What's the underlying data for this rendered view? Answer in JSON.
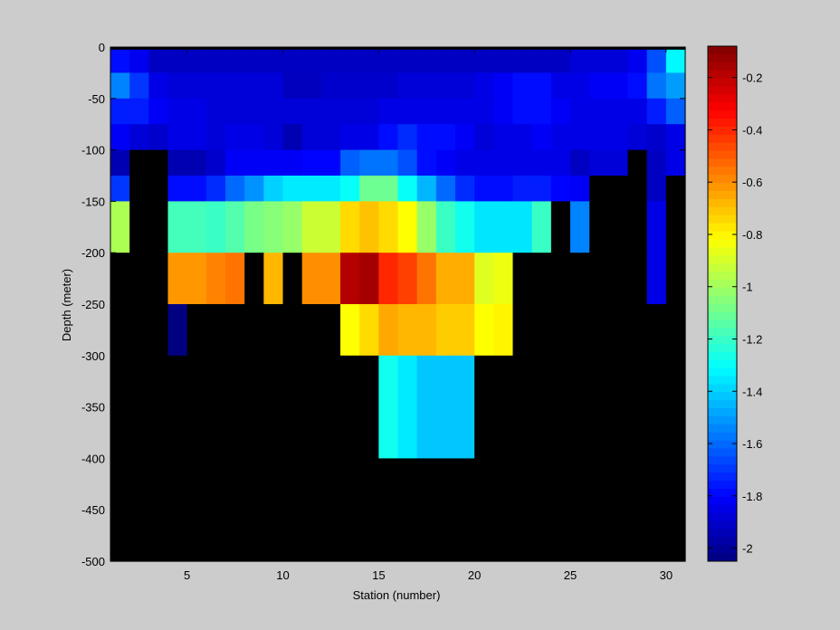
{
  "chart_data": {
    "type": "heatmap",
    "title": "",
    "xlabel": "Station (number)",
    "ylabel": "Depth (meter)",
    "xlim": [
      1,
      31
    ],
    "ylim": [
      -500,
      0
    ],
    "xticks": [
      5,
      10,
      15,
      20,
      25,
      30
    ],
    "xtick_labels": [
      "5",
      "10",
      "15",
      "20",
      "25",
      "30"
    ],
    "yticks": [
      0,
      -50,
      -100,
      -150,
      -200,
      -250,
      -300,
      -350,
      -400,
      -450,
      -500
    ],
    "ytick_labels": [
      "0",
      "-50",
      "-100",
      "-150",
      "-200",
      "-250",
      "-300",
      "-350",
      "-400",
      "-450",
      "-500"
    ],
    "no_data_color": "#000000",
    "background": "#cccccc",
    "stations_x": [
      1,
      31
    ],
    "depth_rows": [
      {
        "top": 0,
        "bottom": -2.5
      },
      {
        "top": -2.5,
        "bottom": -25
      },
      {
        "top": -25,
        "bottom": -50
      },
      {
        "top": -50,
        "bottom": -75
      },
      {
        "top": -75,
        "bottom": -100
      },
      {
        "top": -100,
        "bottom": -125
      },
      {
        "top": -125,
        "bottom": -150
      },
      {
        "top": -150,
        "bottom": -200
      },
      {
        "top": -200,
        "bottom": -250
      },
      {
        "top": -250,
        "bottom": -300
      },
      {
        "top": -300,
        "bottom": -400
      },
      {
        "top": -400,
        "bottom": -500
      }
    ],
    "values": [
      [
        null,
        null,
        null,
        null,
        null,
        null,
        null,
        null,
        null,
        null,
        null,
        null,
        null,
        null,
        null,
        null,
        null,
        null,
        null,
        null,
        null,
        null,
        null,
        null,
        null,
        null,
        null,
        null,
        null,
        null
      ],
      [
        -1.78,
        -1.83,
        -1.92,
        -1.92,
        -1.92,
        -1.92,
        -1.92,
        -1.92,
        -1.92,
        -1.92,
        -1.92,
        -1.92,
        -1.92,
        -1.92,
        -1.92,
        -1.92,
        -1.92,
        -1.92,
        -1.92,
        -1.92,
        -1.92,
        -1.92,
        -1.92,
        -1.92,
        -1.88,
        -1.88,
        -1.88,
        -1.83,
        -1.65,
        -1.32
      ],
      [
        -1.55,
        -1.7,
        -1.85,
        -1.88,
        -1.88,
        -1.88,
        -1.88,
        -1.88,
        -1.88,
        -1.93,
        -1.93,
        -1.9,
        -1.9,
        -1.9,
        -1.9,
        -1.88,
        -1.88,
        -1.88,
        -1.88,
        -1.85,
        -1.82,
        -1.78,
        -1.78,
        -1.85,
        -1.85,
        -1.82,
        -1.82,
        -1.78,
        -1.58,
        -1.5
      ],
      [
        -1.75,
        -1.75,
        -1.82,
        -1.85,
        -1.85,
        -1.88,
        -1.88,
        -1.88,
        -1.88,
        -1.88,
        -1.88,
        -1.88,
        -1.88,
        -1.88,
        -1.85,
        -1.85,
        -1.85,
        -1.85,
        -1.85,
        -1.85,
        -1.82,
        -1.78,
        -1.78,
        -1.82,
        -1.85,
        -1.85,
        -1.85,
        -1.85,
        -1.75,
        -1.62
      ],
      [
        -1.82,
        -1.88,
        -1.9,
        -1.85,
        -1.85,
        -1.88,
        -1.85,
        -1.85,
        -1.88,
        -1.95,
        -1.88,
        -1.88,
        -1.85,
        -1.85,
        -1.78,
        -1.72,
        -1.78,
        -1.78,
        -1.82,
        -1.88,
        -1.85,
        -1.85,
        -1.82,
        -1.85,
        -1.85,
        -1.85,
        -1.85,
        -1.88,
        -1.9,
        -1.85
      ],
      [
        -1.95,
        null,
        null,
        -1.95,
        -1.95,
        -1.9,
        -1.82,
        -1.82,
        -1.82,
        -1.82,
        -1.8,
        -1.8,
        -1.62,
        -1.58,
        -1.58,
        -1.65,
        -1.78,
        -1.82,
        -1.85,
        -1.85,
        -1.85,
        -1.85,
        -1.85,
        -1.85,
        -1.92,
        -1.88,
        -1.88,
        null,
        -1.92,
        -1.85
      ],
      [
        -1.7,
        null,
        null,
        -1.78,
        -1.78,
        -1.72,
        -1.6,
        -1.52,
        -1.4,
        -1.35,
        -1.35,
        -1.35,
        -1.3,
        -1.1,
        -1.1,
        -1.3,
        -1.45,
        -1.6,
        -1.72,
        -1.78,
        -1.78,
        -1.75,
        -1.75,
        -1.8,
        -1.82,
        null,
        null,
        null,
        -1.92,
        null
      ],
      [
        -0.98,
        null,
        null,
        -1.18,
        -1.18,
        -1.2,
        -1.15,
        -1.08,
        -1.05,
        -1.02,
        -0.92,
        -0.92,
        -0.75,
        -0.7,
        -0.75,
        -0.82,
        -1.02,
        -1.2,
        -1.28,
        -1.36,
        -1.36,
        -1.36,
        -1.2,
        null,
        -1.55,
        null,
        null,
        null,
        -1.85,
        null
      ],
      [
        null,
        null,
        null,
        -0.62,
        -0.62,
        -0.58,
        -0.55,
        null,
        -0.68,
        null,
        -0.6,
        -0.6,
        -0.18,
        -0.15,
        -0.4,
        -0.45,
        -0.55,
        -0.66,
        -0.66,
        -0.88,
        -0.85,
        null,
        null,
        null,
        null,
        null,
        null,
        null,
        -1.85,
        null
      ],
      [
        null,
        null,
        null,
        -2.05,
        null,
        null,
        null,
        null,
        null,
        null,
        null,
        null,
        -0.82,
        -0.75,
        -0.65,
        -0.68,
        -0.68,
        -0.72,
        -0.72,
        -0.82,
        -0.8,
        null,
        null,
        null,
        null,
        null,
        null,
        null,
        null,
        null
      ],
      [
        null,
        null,
        null,
        null,
        null,
        null,
        null,
        null,
        null,
        null,
        null,
        null,
        null,
        null,
        -1.28,
        -1.35,
        -1.42,
        -1.42,
        -1.42,
        null,
        null,
        null,
        null,
        null,
        null,
        null,
        null,
        null,
        null,
        null
      ],
      [
        null,
        null,
        null,
        null,
        null,
        null,
        null,
        null,
        null,
        null,
        null,
        null,
        null,
        null,
        null,
        null,
        null,
        null,
        null,
        null,
        null,
        null,
        null,
        null,
        null,
        null,
        null,
        null,
        null,
        null
      ]
    ],
    "colorbar": {
      "colormap": "jet",
      "clim": [
        -2.05,
        -0.08
      ],
      "ticks": [
        -2,
        -1.8,
        -1.6,
        -1.4,
        -1.2,
        -1,
        -0.8,
        -0.6,
        -0.4,
        -0.2
      ],
      "tick_labels": [
        "-2",
        "-1.8",
        "-1.6",
        "-1.4",
        "-1.2",
        "-1",
        "-0.8",
        "-0.6",
        "-0.4",
        "-0.2"
      ]
    }
  }
}
